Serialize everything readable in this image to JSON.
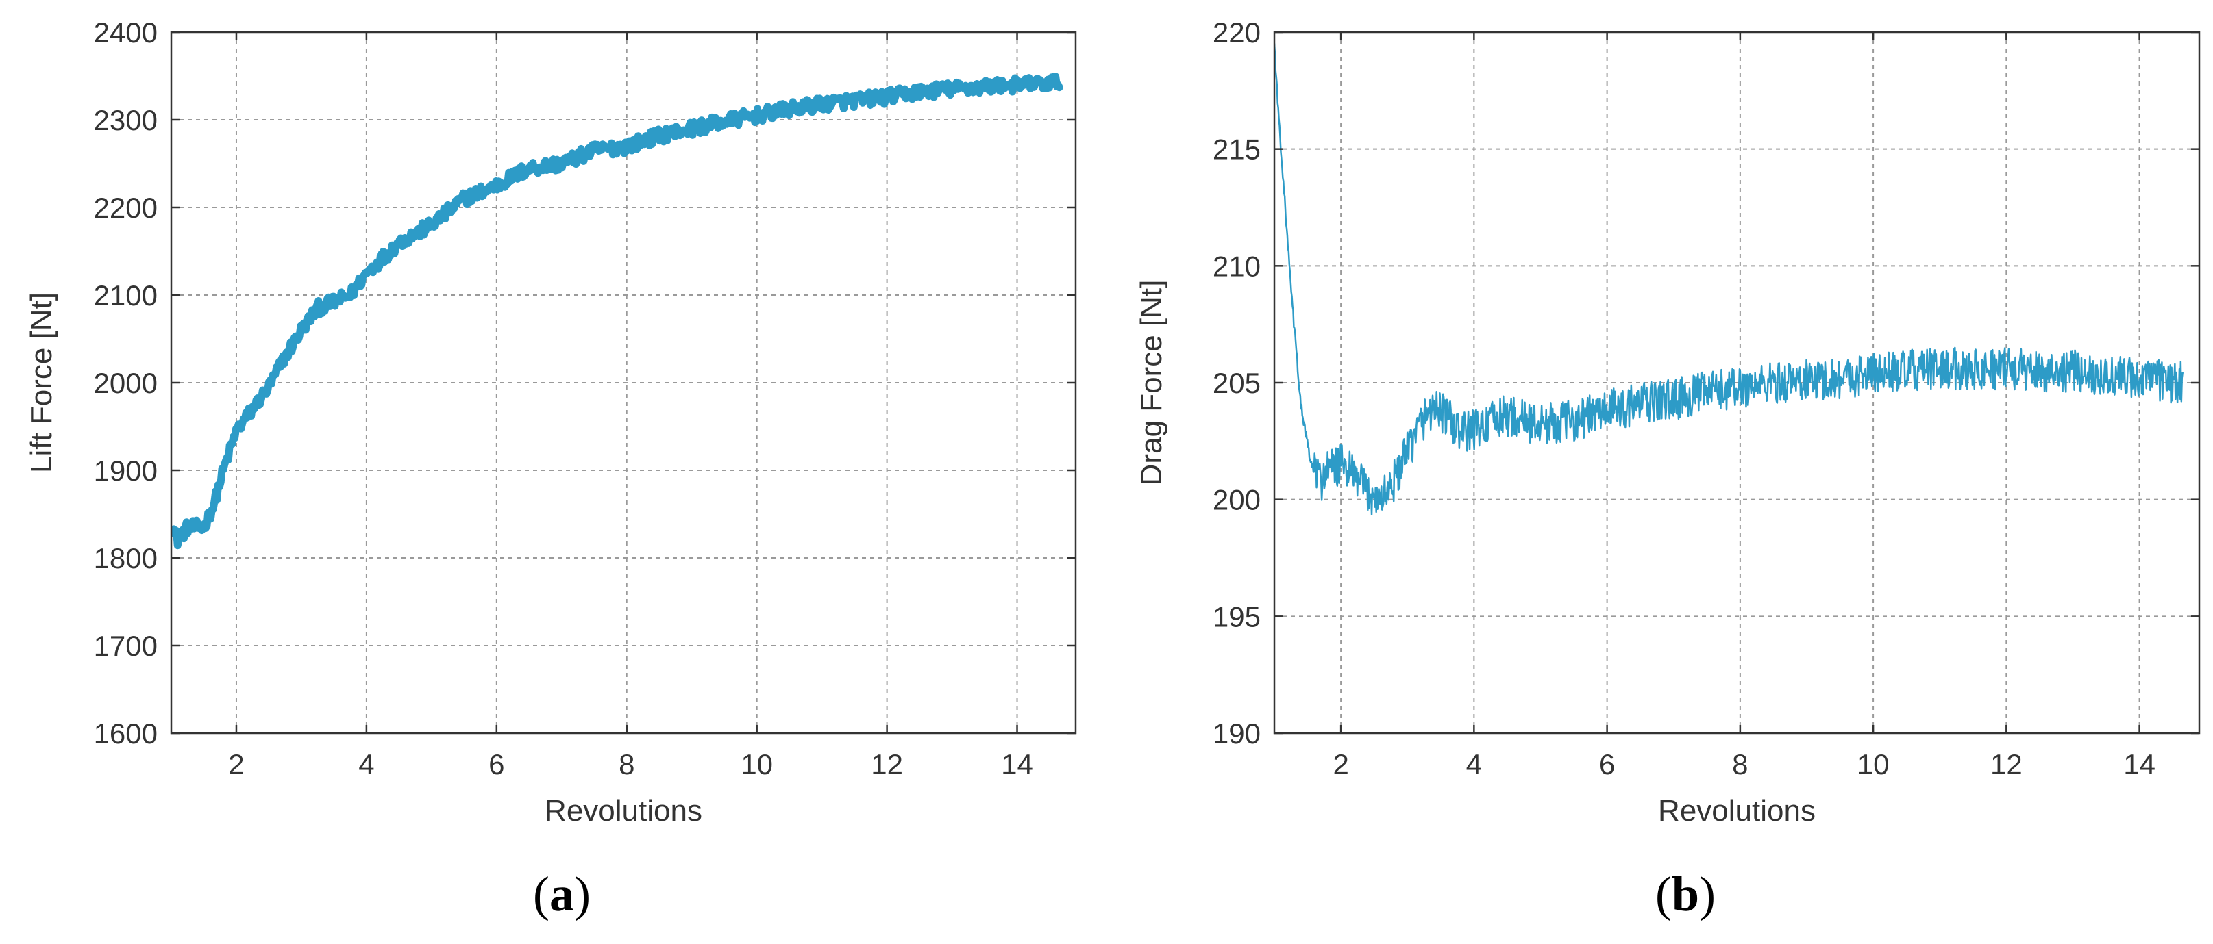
{
  "chart_data": [
    {
      "id": "a",
      "type": "line",
      "panel_label": "a",
      "xlabel": "Revolutions",
      "ylabel": "Lift Force [Nt]",
      "xlim": [
        1,
        14.9
      ],
      "ylim": [
        1600,
        2400
      ],
      "xticks": [
        2,
        4,
        6,
        8,
        10,
        12,
        14
      ],
      "yticks": [
        1600,
        1700,
        1800,
        1900,
        2000,
        2100,
        2200,
        2300,
        2400
      ],
      "grid": true,
      "color": "#2d9bc7",
      "noise": 8,
      "line_width": 11,
      "series": [
        {
          "x": [
            1.0,
            1.1,
            1.25,
            1.5,
            1.65,
            1.8,
            2.0,
            2.25,
            2.5,
            2.75,
            3.0,
            3.25,
            3.5,
            3.75,
            4.0,
            4.5,
            5.0,
            5.5,
            6.0,
            6.5,
            7.0,
            7.5,
            8.0,
            8.5,
            9.0,
            9.5,
            10.0,
            10.5,
            11.0,
            11.5,
            12.0,
            12.5,
            13.0,
            13.5,
            14.0,
            14.5,
            14.65
          ],
          "y": [
            1840,
            1820,
            1835,
            1835,
            1860,
            1900,
            1945,
            1970,
            1995,
            2030,
            2060,
            2085,
            2092,
            2100,
            2125,
            2160,
            2180,
            2210,
            2225,
            2245,
            2250,
            2265,
            2270,
            2282,
            2290,
            2298,
            2305,
            2312,
            2318,
            2322,
            2326,
            2332,
            2335,
            2338,
            2340,
            2342,
            2344
          ]
        }
      ]
    },
    {
      "id": "b",
      "type": "line",
      "panel_label": "b",
      "xlabel": "Revolutions",
      "ylabel": "Drag Force [Nt]",
      "xlim": [
        1,
        14.9
      ],
      "ylim": [
        190,
        220
      ],
      "xticks": [
        2,
        4,
        6,
        8,
        10,
        12,
        14
      ],
      "yticks": [
        190,
        195,
        200,
        205,
        210,
        215,
        220
      ],
      "grid": true,
      "color": "#2d9bc7",
      "noise": 0.9,
      "line_width": 2.5,
      "series": [
        {
          "x": [
            1.0,
            1.05,
            1.15,
            1.25,
            1.4,
            1.55,
            1.7,
            1.8,
            2.0,
            2.2,
            2.4,
            2.6,
            2.8,
            3.0,
            3.2,
            3.4,
            3.6,
            3.8,
            4.0,
            4.5,
            5.0,
            5.5,
            6.0,
            6.5,
            7.0,
            7.5,
            8.0,
            8.5,
            9.0,
            9.5,
            10.0,
            10.5,
            11.0,
            11.5,
            12.0,
            12.5,
            13.0,
            13.5,
            14.0,
            14.5,
            14.65
          ],
          "y": [
            219.5,
            217,
            213,
            209,
            204,
            201.5,
            200.8,
            201.2,
            201.5,
            201,
            200.3,
            200,
            200.8,
            202,
            203.3,
            204,
            203.5,
            202.8,
            203,
            203.6,
            203.2,
            203.4,
            203.8,
            204.1,
            204.3,
            204.6,
            204.8,
            205.0,
            205.1,
            205.2,
            205.4,
            205.5,
            205.6,
            205.6,
            205.6,
            205.5,
            205.5,
            205.3,
            205.2,
            205.0,
            205.0
          ]
        }
      ]
    }
  ]
}
